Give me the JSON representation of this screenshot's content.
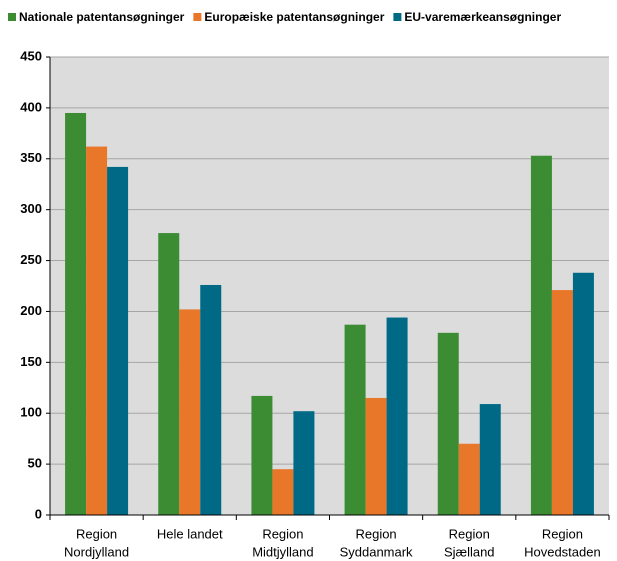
{
  "chart_data": {
    "type": "bar",
    "categories": [
      [
        "Region",
        "Nordjylland"
      ],
      [
        "Hele landet"
      ],
      [
        "Region",
        "Midtjylland"
      ],
      [
        "Region",
        "Syddanmark"
      ],
      [
        "Region",
        "Sjælland"
      ],
      [
        "Region",
        "Hovedstaden"
      ]
    ],
    "series": [
      {
        "name": "Nationale patentansøgninger",
        "color": "#3b8c33",
        "values": [
          395,
          277,
          117,
          187,
          179,
          353
        ]
      },
      {
        "name": "Europæiske patentansøgninger",
        "color": "#e8772a",
        "values": [
          362,
          202,
          45,
          115,
          70,
          221
        ]
      },
      {
        "name": "EU-varemærkeansøgninger",
        "color": "#006a86",
        "values": [
          342,
          226,
          102,
          194,
          109,
          238
        ]
      }
    ],
    "ylim": [
      0,
      450
    ],
    "yticks": [
      0,
      50,
      100,
      150,
      200,
      250,
      300,
      350,
      400,
      450
    ],
    "grid": true
  }
}
